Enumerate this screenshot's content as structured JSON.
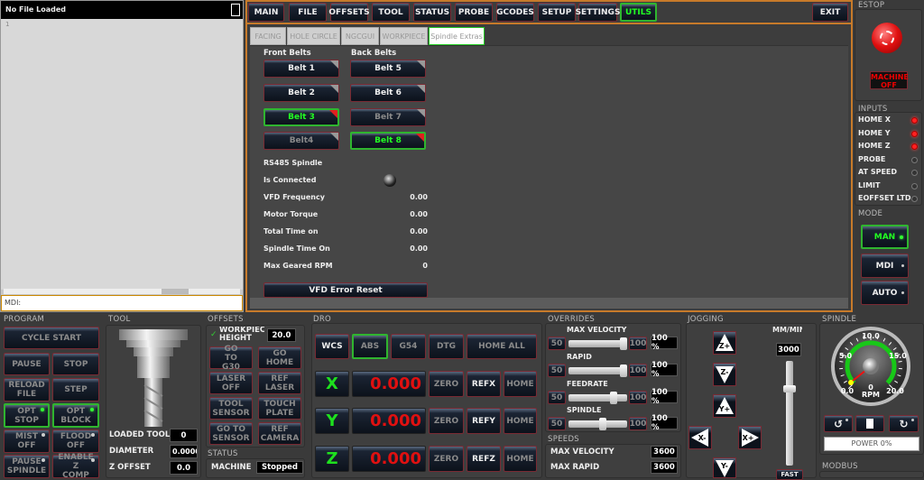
{
  "file_panel": {
    "title": "No File Loaded",
    "line_number": "1",
    "mdi_label": "MDI:",
    "mdi_value": ""
  },
  "nav": {
    "tabs": [
      "MAIN",
      "FILE",
      "OFFSETS",
      "TOOL",
      "STATUS",
      "PROBE",
      "GCODES",
      "SETUP",
      "SETTINGS",
      "UTILS"
    ],
    "active": "UTILS",
    "exit": "EXIT"
  },
  "subtabs": {
    "tabs": [
      "FACING",
      "HOLE CIRCLE",
      "NGCGUI",
      "WORKPIECE",
      "Spindle Extras"
    ],
    "active": "Spindle Extras"
  },
  "belts": {
    "front_label": "Front Belts",
    "back_label": "Back Belts",
    "front": [
      {
        "label": "Belt 1",
        "state": "normal"
      },
      {
        "label": "Belt 2",
        "state": "normal"
      },
      {
        "label": "Belt 3",
        "state": "active"
      },
      {
        "label": "Belt4",
        "state": "disabled"
      }
    ],
    "back": [
      {
        "label": "Belt 5",
        "state": "normal"
      },
      {
        "label": "Belt 6",
        "state": "normal"
      },
      {
        "label": "Belt 7",
        "state": "disabled"
      },
      {
        "label": "Belt 8",
        "state": "active"
      }
    ]
  },
  "rs485": {
    "title": "RS485 Spindle",
    "connected_label": "Is Connected",
    "connected": false,
    "rows": [
      {
        "label": "VFD Frequency",
        "value": "0.00"
      },
      {
        "label": "Motor Torque",
        "value": "0.00"
      },
      {
        "label": "Total Time on",
        "value": "0.00"
      },
      {
        "label": "Spindle Time On",
        "value": "0.00"
      },
      {
        "label": "Max Geared RPM",
        "value": "0"
      }
    ],
    "reset": "VFD Error Reset"
  },
  "estop": {
    "title": "ESTOP",
    "machine": "MACHINE",
    "off": "OFF"
  },
  "inputs": {
    "title": "INPUTS",
    "items": [
      {
        "label": "HOME X",
        "on": true
      },
      {
        "label": "HOME Y",
        "on": true
      },
      {
        "label": "HOME Z",
        "on": true
      },
      {
        "label": "PROBE",
        "on": false
      },
      {
        "label": "AT SPEED",
        "on": false
      },
      {
        "label": "LIMIT",
        "on": false
      },
      {
        "label": "EOFFSET LTD",
        "on": false
      }
    ]
  },
  "mode": {
    "title": "MODE",
    "items": [
      "MAN",
      "MDI",
      "AUTO"
    ],
    "active": "MAN"
  },
  "program": {
    "title": "PROGRAM",
    "cycle_start": "CYCLE START",
    "pause": "PAUSE",
    "stop": "STOP",
    "reload": "RELOAD FILE",
    "step": "STEP",
    "opt_stop": "OPT STOP",
    "opt_block": "OPT BLOCK",
    "mist": "MIST OFF",
    "flood": "FLOOD OFF",
    "pause_spindle": "PAUSE SPINDLE",
    "zcomp": "ENABLE Z COMP"
  },
  "tool": {
    "title": "TOOL",
    "loaded_label": "LOADED TOOL",
    "loaded": "0",
    "diameter_label": "DIAMETER",
    "diameter": "0.0000",
    "zoffset_label": "Z OFFSET",
    "zoffset": "0.0"
  },
  "offsets": {
    "title": "OFFSETS",
    "workpiece_label": "WORKPIEC HEIGHT",
    "workpiece": "20.0",
    "buttons": [
      "GO TO G30",
      "GO HOME",
      "LASER OFF",
      "REF LASER",
      "TOOL SENSOR",
      "TOUCH PLATE",
      "GO TO SENSOR",
      "REF CAMERA"
    ]
  },
  "status": {
    "title": "STATUS",
    "machine_label": "MACHINE",
    "machine": "Stopped"
  },
  "dro": {
    "title": "DRO",
    "wcs": "WCS",
    "abs": "ABS",
    "g54": "G54",
    "dtg": "DTG",
    "home_all": "HOME ALL",
    "axes": [
      {
        "axis": "X",
        "value": "0.000",
        "ref": "REFX"
      },
      {
        "axis": "Y",
        "value": "0.000",
        "ref": "REFY"
      },
      {
        "axis": "Z",
        "value": "0.000",
        "ref": "REFZ"
      }
    ],
    "zero": "ZERO",
    "home": "HOME"
  },
  "overrides": {
    "title": "OVERRIDES",
    "min": "50",
    "max": "100",
    "items": [
      {
        "label": "MAX VELOCITY",
        "value": "100 %",
        "fraction": 1.0
      },
      {
        "label": "RAPID",
        "value": "100 %",
        "fraction": 1.0
      },
      {
        "label": "FEEDRATE",
        "value": "100 %",
        "fraction": 0.8
      },
      {
        "label": "SPINDLE",
        "value": "100 %",
        "fraction": 0.6
      }
    ]
  },
  "speeds": {
    "title": "SPEEDS",
    "max_velocity_label": "MAX VELOCITY",
    "max_velocity": "3600",
    "max_rapid_label": "MAX RAPID",
    "max_rapid": "3600"
  },
  "jogging": {
    "title": "JOGGING",
    "units": "MM/MIN",
    "rate": "3000",
    "z_plus": "Z+",
    "z_minus": "Z-",
    "y_plus": "Y+",
    "y_minus": "Y-",
    "x_minus": "X-",
    "x_plus": "X+",
    "fast": "FAST",
    "rate_fraction": 0.75
  },
  "spindle": {
    "title": "SPINDLE",
    "gauge_ticks": [
      "0.0",
      "5.0",
      "10.0",
      "15.0",
      "20.0"
    ],
    "rpm": "0",
    "rpm_label": "RPM",
    "power": "POWER 0%"
  },
  "modbus": {
    "title": "MODBUS"
  }
}
